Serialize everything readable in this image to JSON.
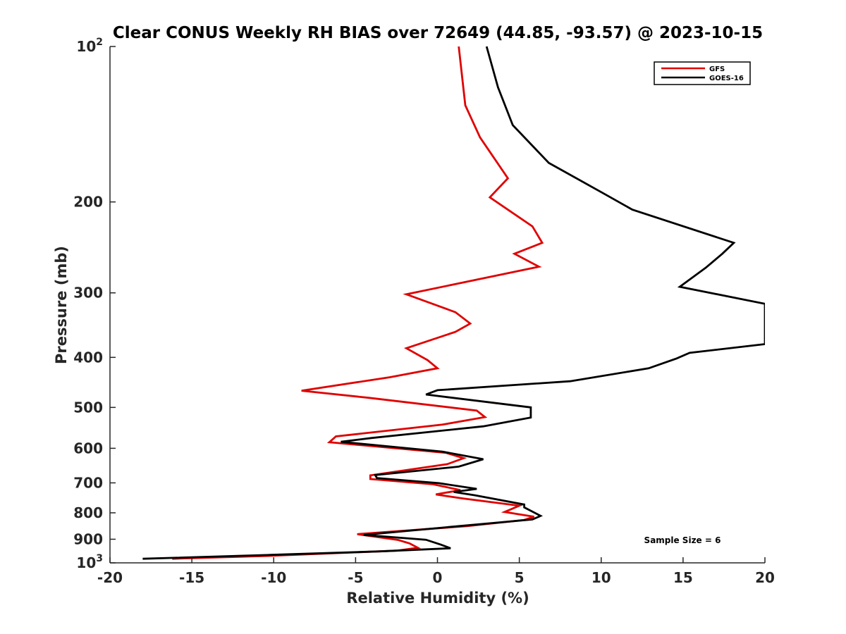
{
  "chart_data": {
    "type": "line",
    "title": "Clear CONUS Weekly RH BIAS over 72649 (44.85, -93.57) @ 2023-10-15",
    "xlabel": "Relative Humidity (%)",
    "ylabel": "Pressure (mb)",
    "xlim": [
      -20,
      20
    ],
    "ylim": [
      100,
      1000
    ],
    "y_scale": "log",
    "y_reversed": true,
    "grid": false,
    "legend_position": "top-right",
    "x_ticks": [
      "-20",
      "-15",
      "-10",
      "-5",
      "0",
      "5",
      "10",
      "15",
      "20"
    ],
    "y_ticks": [
      {
        "value": 200,
        "label": "200"
      },
      {
        "value": 300,
        "label": "300"
      },
      {
        "value": 400,
        "label": "400"
      },
      {
        "value": 500,
        "label": "500"
      },
      {
        "value": 600,
        "label": "600"
      },
      {
        "value": 700,
        "label": "700"
      },
      {
        "value": 800,
        "label": "800"
      },
      {
        "value": 900,
        "label": "900"
      }
    ],
    "y_tick_top": {
      "value": 100,
      "base": "10",
      "exp": "2"
    },
    "y_tick_bottom": {
      "value": 1000,
      "base": "10",
      "exp": "3"
    },
    "annotation": "Sample Size = 6",
    "series": [
      {
        "name": "GFS",
        "color": "#e00000",
        "points": [
          [
            1.3,
            100
          ],
          [
            1.7,
            130
          ],
          [
            2.6,
            150
          ],
          [
            4.3,
            180
          ],
          [
            3.2,
            196
          ],
          [
            5.8,
            223
          ],
          [
            6.4,
            240
          ],
          [
            4.7,
            252
          ],
          [
            6.2,
            267
          ],
          [
            -1.9,
            302
          ],
          [
            1.1,
            327
          ],
          [
            2.0,
            344
          ],
          [
            1.1,
            357
          ],
          [
            -1.9,
            384
          ],
          [
            -0.6,
            405
          ],
          [
            0.0,
            420
          ],
          [
            -2.9,
            437
          ],
          [
            -8.3,
            464
          ],
          [
            -4.2,
            479
          ],
          [
            2.4,
            507
          ],
          [
            2.9,
            522
          ],
          [
            0.3,
            540
          ],
          [
            -6.2,
            569
          ],
          [
            -6.6,
            584
          ],
          [
            0.5,
            612
          ],
          [
            1.6,
            627
          ],
          [
            0.6,
            644
          ],
          [
            -4.1,
            677
          ],
          [
            -4.1,
            688
          ],
          [
            -0.3,
            704
          ],
          [
            1.4,
            723
          ],
          [
            -0.1,
            737
          ],
          [
            1.6,
            751
          ],
          [
            5.0,
            775
          ],
          [
            4.1,
            797
          ],
          [
            5.9,
            814
          ],
          [
            5.3,
            826
          ],
          [
            1.8,
            849
          ],
          [
            -4.9,
            880
          ],
          [
            -2.4,
            903
          ],
          [
            -1.7,
            917
          ],
          [
            -1.2,
            935
          ],
          [
            -2.5,
            947
          ],
          [
            -10.2,
            969
          ],
          [
            -16.2,
            982
          ]
        ]
      },
      {
        "name": "GOES-16",
        "color": "#000000",
        "points": [
          [
            3.0,
            100
          ],
          [
            3.7,
            120
          ],
          [
            4.6,
            142
          ],
          [
            6.8,
            168
          ],
          [
            10.2,
            193
          ],
          [
            11.9,
            207
          ],
          [
            18.1,
            240
          ],
          [
            17.4,
            252
          ],
          [
            16.4,
            268
          ],
          [
            14.8,
            292
          ],
          [
            20.0,
            315
          ],
          [
            20.0,
            377
          ],
          [
            15.4,
            392
          ],
          [
            14.6,
            402
          ],
          [
            12.9,
            420
          ],
          [
            8.1,
            445
          ],
          [
            0.0,
            463
          ],
          [
            -0.7,
            472
          ],
          [
            5.7,
            500
          ],
          [
            5.7,
            523
          ],
          [
            2.8,
            544
          ],
          [
            -4.0,
            573
          ],
          [
            -5.9,
            583
          ],
          [
            0.3,
            609
          ],
          [
            2.8,
            630
          ],
          [
            1.3,
            651
          ],
          [
            -3.8,
            676
          ],
          [
            -3.7,
            685
          ],
          [
            0.1,
            701
          ],
          [
            2.4,
            719
          ],
          [
            1.0,
            729
          ],
          [
            2.3,
            740
          ],
          [
            5.3,
            771
          ],
          [
            5.3,
            781
          ],
          [
            6.3,
            811
          ],
          [
            5.8,
            824
          ],
          [
            1.1,
            850
          ],
          [
            -4.5,
            883
          ],
          [
            -0.7,
            902
          ],
          [
            0.2,
            922
          ],
          [
            0.8,
            937
          ],
          [
            -3.5,
            950
          ],
          [
            -10.2,
            965
          ],
          [
            -18.0,
            982
          ]
        ]
      }
    ]
  }
}
